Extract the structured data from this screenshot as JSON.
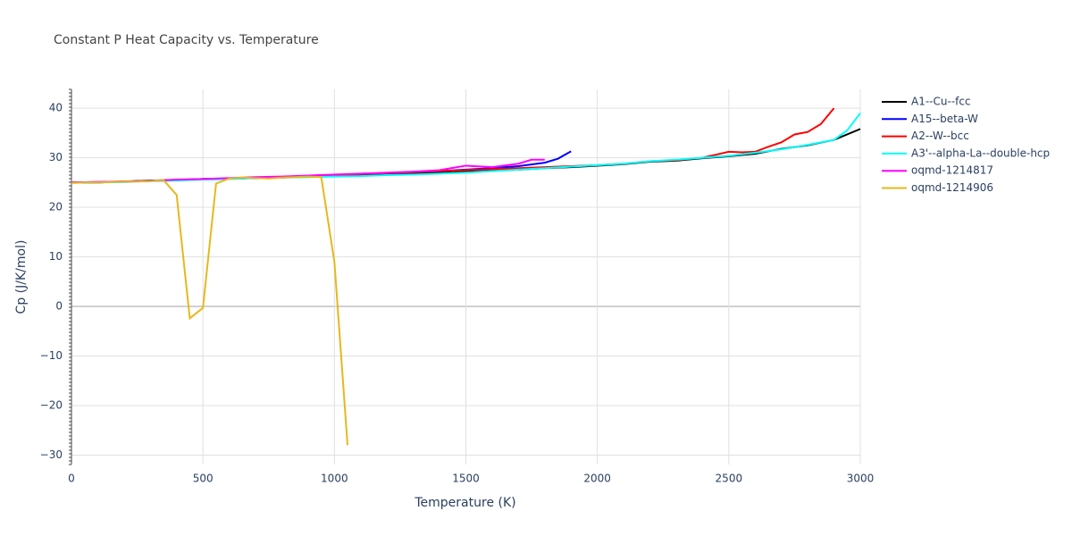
{
  "chart_data": {
    "type": "line",
    "title": "Constant P Heat Capacity vs. Temperature",
    "x_label": "Temperature (K)",
    "y_label": "Cp (J/K/mol)",
    "xlim": [
      0,
      3000
    ],
    "ylim": [
      -31.9,
      43.8
    ],
    "xticks": [
      0,
      500,
      1000,
      1500,
      2000,
      2500,
      3000
    ],
    "yticks": [
      {
        "value": -30,
        "label": "−30"
      },
      {
        "value": -20,
        "label": "−20"
      },
      {
        "value": -10,
        "label": "−10"
      },
      0,
      10,
      20,
      30,
      40
    ],
    "grid": true,
    "legend": "right",
    "series": [
      {
        "name": "A1--Cu--fcc",
        "color": "#000000",
        "x": [
          0,
          100,
          200,
          300,
          400,
          500,
          600,
          700,
          800,
          900,
          1000,
          1100,
          1200,
          1300,
          1400,
          1500,
          1600,
          1700,
          1800,
          1900,
          2000,
          2100,
          2200,
          2300,
          2400,
          2500,
          2600,
          2700,
          2800,
          2900,
          3000
        ],
        "values": [
          25,
          25,
          25.2,
          25.4,
          25.5,
          25.7,
          25.8,
          25.9,
          26,
          26.2,
          26.3,
          26.5,
          26.6,
          26.8,
          27,
          27.2,
          27.4,
          27.6,
          27.9,
          28.1,
          28.4,
          28.7,
          29.2,
          29.4,
          29.9,
          30.3,
          30.8,
          31.8,
          32.5,
          33.6,
          35.8
        ]
      },
      {
        "name": "A15--beta-W",
        "color": "#0000ff",
        "x": [
          0,
          100,
          200,
          300,
          400,
          500,
          600,
          700,
          800,
          900,
          1000,
          1100,
          1200,
          1300,
          1400,
          1500,
          1600,
          1700,
          1800,
          1850,
          1900
        ],
        "values": [
          25,
          25,
          25.2,
          25.4,
          25.5,
          25.7,
          25.8,
          25.9,
          26.1,
          26.3,
          26.5,
          26.7,
          26.9,
          27.1,
          27.3,
          27.6,
          27.9,
          28.3,
          29,
          29.8,
          31.3
        ]
      },
      {
        "name": "A2--W--bcc",
        "color": "#ff0000",
        "x": [
          0,
          100,
          200,
          300,
          400,
          500,
          600,
          700,
          800,
          900,
          1000,
          1100,
          1200,
          1300,
          1400,
          1500,
          1600,
          1700,
          1800,
          1900,
          2000,
          2100,
          2200,
          2300,
          2400,
          2500,
          2550,
          2600,
          2650,
          2700,
          2750,
          2800,
          2850,
          2900
        ],
        "values": [
          25,
          25.1,
          25.2,
          25.3,
          25.5,
          25.6,
          25.8,
          26,
          26.1,
          26.3,
          26.5,
          26.7,
          26.9,
          27.1,
          27.3,
          27.5,
          27.7,
          27.9,
          28.1,
          28.3,
          28.5,
          28.8,
          29.3,
          29.5,
          30,
          31.2,
          31.1,
          31.2,
          32.2,
          33.1,
          34.7,
          35.2,
          36.8,
          40
        ]
      },
      {
        "name": "A3'--alpha-La--double-hcp",
        "color": "#00ffff",
        "x": [
          0,
          100,
          200,
          300,
          400,
          500,
          600,
          700,
          800,
          900,
          1000,
          1100,
          1200,
          1300,
          1400,
          1500,
          1600,
          1700,
          1800,
          1900,
          2000,
          2100,
          2200,
          2300,
          2400,
          2500,
          2600,
          2700,
          2800,
          2900,
          2950,
          3000
        ],
        "values": [
          25,
          25,
          25.1,
          25.3,
          25.4,
          25.6,
          25.7,
          25.9,
          26,
          26.1,
          26.2,
          26.3,
          26.5,
          26.6,
          26.8,
          27,
          27.3,
          27.6,
          27.9,
          28.2,
          28.5,
          28.8,
          29.3,
          29.6,
          30,
          30.4,
          31,
          31.7,
          32.6,
          33.6,
          35.5,
          39
        ]
      },
      {
        "name": "oqmd-1214817",
        "color": "#ff00ff",
        "x": [
          0,
          100,
          200,
          300,
          400,
          500,
          600,
          700,
          800,
          900,
          1000,
          1100,
          1200,
          1300,
          1400,
          1500,
          1600,
          1700,
          1750,
          1800
        ],
        "values": [
          25,
          25.1,
          25.2,
          25.3,
          25.6,
          25.7,
          25.9,
          26.1,
          26.2,
          26.4,
          26.6,
          26.8,
          27,
          27.2,
          27.5,
          28.4,
          28.1,
          28.8,
          29.6,
          29.6
        ]
      },
      {
        "name": "oqmd-1214906",
        "color": "#e6b81e",
        "x": [
          0,
          50,
          100,
          150,
          200,
          250,
          300,
          350,
          400,
          450,
          500,
          550,
          600,
          650,
          700,
          750,
          800,
          850,
          900,
          950,
          1000,
          1050
        ],
        "values": [
          24.9,
          25,
          25,
          25.1,
          25.2,
          25.2,
          25.3,
          25.5,
          22.5,
          -2.4,
          -0.3,
          24.8,
          25.8,
          26,
          25.9,
          25.8,
          26,
          26.1,
          26.2,
          26.1,
          9,
          -28
        ]
      }
    ]
  }
}
